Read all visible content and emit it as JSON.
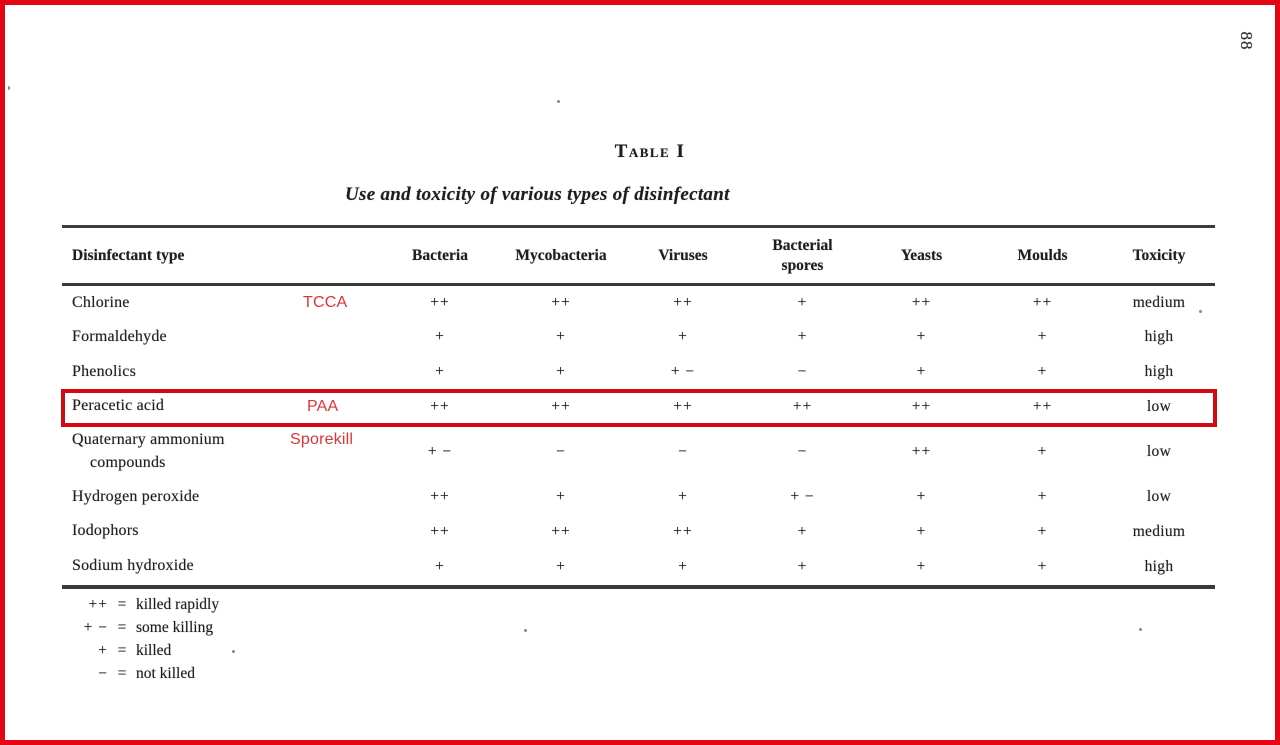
{
  "page": {
    "page_number": "88",
    "title": "Table I",
    "subtitle": "Use and toxicity of various types of disinfectant"
  },
  "table": {
    "columns": [
      "Disinfectant type",
      "Bacteria",
      "Mycobacteria",
      "Viruses",
      "Bacterial spores",
      "Yeasts",
      "Moulds",
      "Toxicity"
    ],
    "rows": [
      {
        "name": "Chlorine",
        "annotation": "TCCA",
        "highlighted": false,
        "bacteria": "++",
        "mycobacteria": "++",
        "viruses": "++",
        "bacterial_spores": "+",
        "yeasts": "++",
        "moulds": "++",
        "toxicity": "medium"
      },
      {
        "name": "Formaldehyde",
        "annotation": "",
        "highlighted": false,
        "bacteria": "+",
        "mycobacteria": "+",
        "viruses": "+",
        "bacterial_spores": "+",
        "yeasts": "+",
        "moulds": "+",
        "toxicity": "high"
      },
      {
        "name": "Phenolics",
        "annotation": "",
        "highlighted": false,
        "bacteria": "+",
        "mycobacteria": "+",
        "viruses": "+ −",
        "bacterial_spores": "−",
        "yeasts": "+",
        "moulds": "+",
        "toxicity": "high"
      },
      {
        "name": "Peracetic acid",
        "annotation": "PAA",
        "highlighted": true,
        "bacteria": "++",
        "mycobacteria": "++",
        "viruses": "++",
        "bacterial_spores": "++",
        "yeasts": "++",
        "moulds": "++",
        "toxicity": "low"
      },
      {
        "name": "Quaternary ammonium compounds",
        "annotation": "Sporekill",
        "highlighted": false,
        "bacteria": "+ −",
        "mycobacteria": "−",
        "viruses": "−",
        "bacterial_spores": "−",
        "yeasts": "++",
        "moulds": "+",
        "toxicity": "low"
      },
      {
        "name": "Hydrogen peroxide",
        "annotation": "",
        "highlighted": false,
        "bacteria": "++",
        "mycobacteria": "+",
        "viruses": "+",
        "bacterial_spores": "+ −",
        "yeasts": "+",
        "moulds": "+",
        "toxicity": "low"
      },
      {
        "name": "Iodophors",
        "annotation": "",
        "highlighted": false,
        "bacteria": "++",
        "mycobacteria": "++",
        "viruses": "++",
        "bacterial_spores": "+",
        "yeasts": "+",
        "moulds": "+",
        "toxicity": "medium"
      },
      {
        "name": "Sodium hydroxide",
        "annotation": "",
        "highlighted": false,
        "bacteria": "+",
        "mycobacteria": "+",
        "viruses": "+",
        "bacterial_spores": "+",
        "yeasts": "+",
        "moulds": "+",
        "toxicity": "high"
      }
    ],
    "legend": [
      {
        "symbol": "++",
        "meaning": "killed rapidly"
      },
      {
        "symbol": "+ −",
        "meaning": "some killing"
      },
      {
        "symbol": "+",
        "meaning": "killed"
      },
      {
        "symbol": "−",
        "meaning": "not killed"
      }
    ]
  },
  "annotation_colors": {
    "page_border": "#e30613",
    "highlight_box": "#d40a10",
    "label_text": "#e03338"
  }
}
